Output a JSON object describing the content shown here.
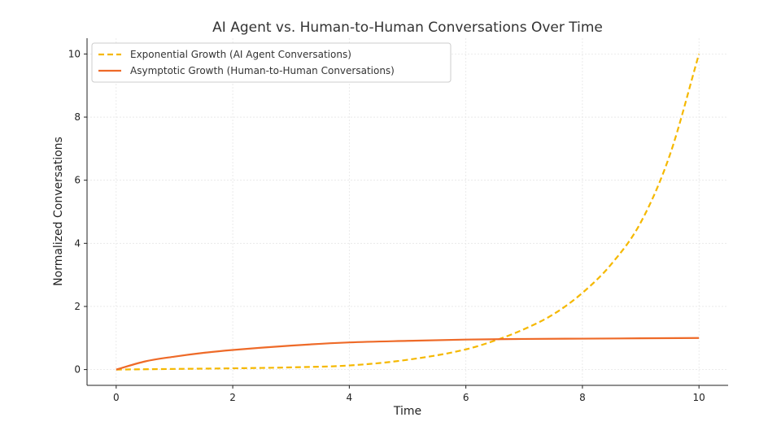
{
  "chart_data": {
    "type": "line",
    "title": "AI Agent vs. Human-to-Human Conversations Over Time",
    "xlabel": "Time",
    "ylabel": "Normalized Conversations",
    "xlim": [
      -0.5,
      10.5
    ],
    "ylim": [
      -0.5,
      10.5
    ],
    "xticks": [
      0,
      2,
      4,
      6,
      8,
      10
    ],
    "yticks": [
      0,
      2,
      4,
      6,
      8,
      10
    ],
    "x_tick_labels": [
      "0",
      "2",
      "4",
      "6",
      "8",
      "10"
    ],
    "y_tick_labels": [
      "0",
      "2",
      "4",
      "6",
      "8",
      "10"
    ],
    "grid": true,
    "legend_position": "top-left",
    "series": [
      {
        "name": "Exponential Growth (AI Agent Conversations)",
        "color": "#F5B800",
        "style": "dashed",
        "x": [
          0,
          1,
          2,
          3,
          4,
          5,
          6,
          6.5,
          7,
          7.5,
          8,
          8.5,
          9,
          9.5,
          10
        ],
        "y": [
          0,
          0.02,
          0.04,
          0.07,
          0.13,
          0.31,
          0.64,
          0.92,
          1.28,
          1.75,
          2.43,
          3.35,
          4.66,
          6.8,
          10
        ]
      },
      {
        "name": "Asymptotic Growth (Human-to-Human Conversations)",
        "color": "#EE6A28",
        "style": "solid",
        "x": [
          0,
          0.5,
          1,
          1.5,
          2,
          3,
          4,
          5,
          6,
          7,
          8,
          9,
          10
        ],
        "y": [
          0,
          0.26,
          0.41,
          0.53,
          0.62,
          0.76,
          0.86,
          0.91,
          0.95,
          0.97,
          0.98,
          0.99,
          1.0
        ]
      }
    ]
  }
}
